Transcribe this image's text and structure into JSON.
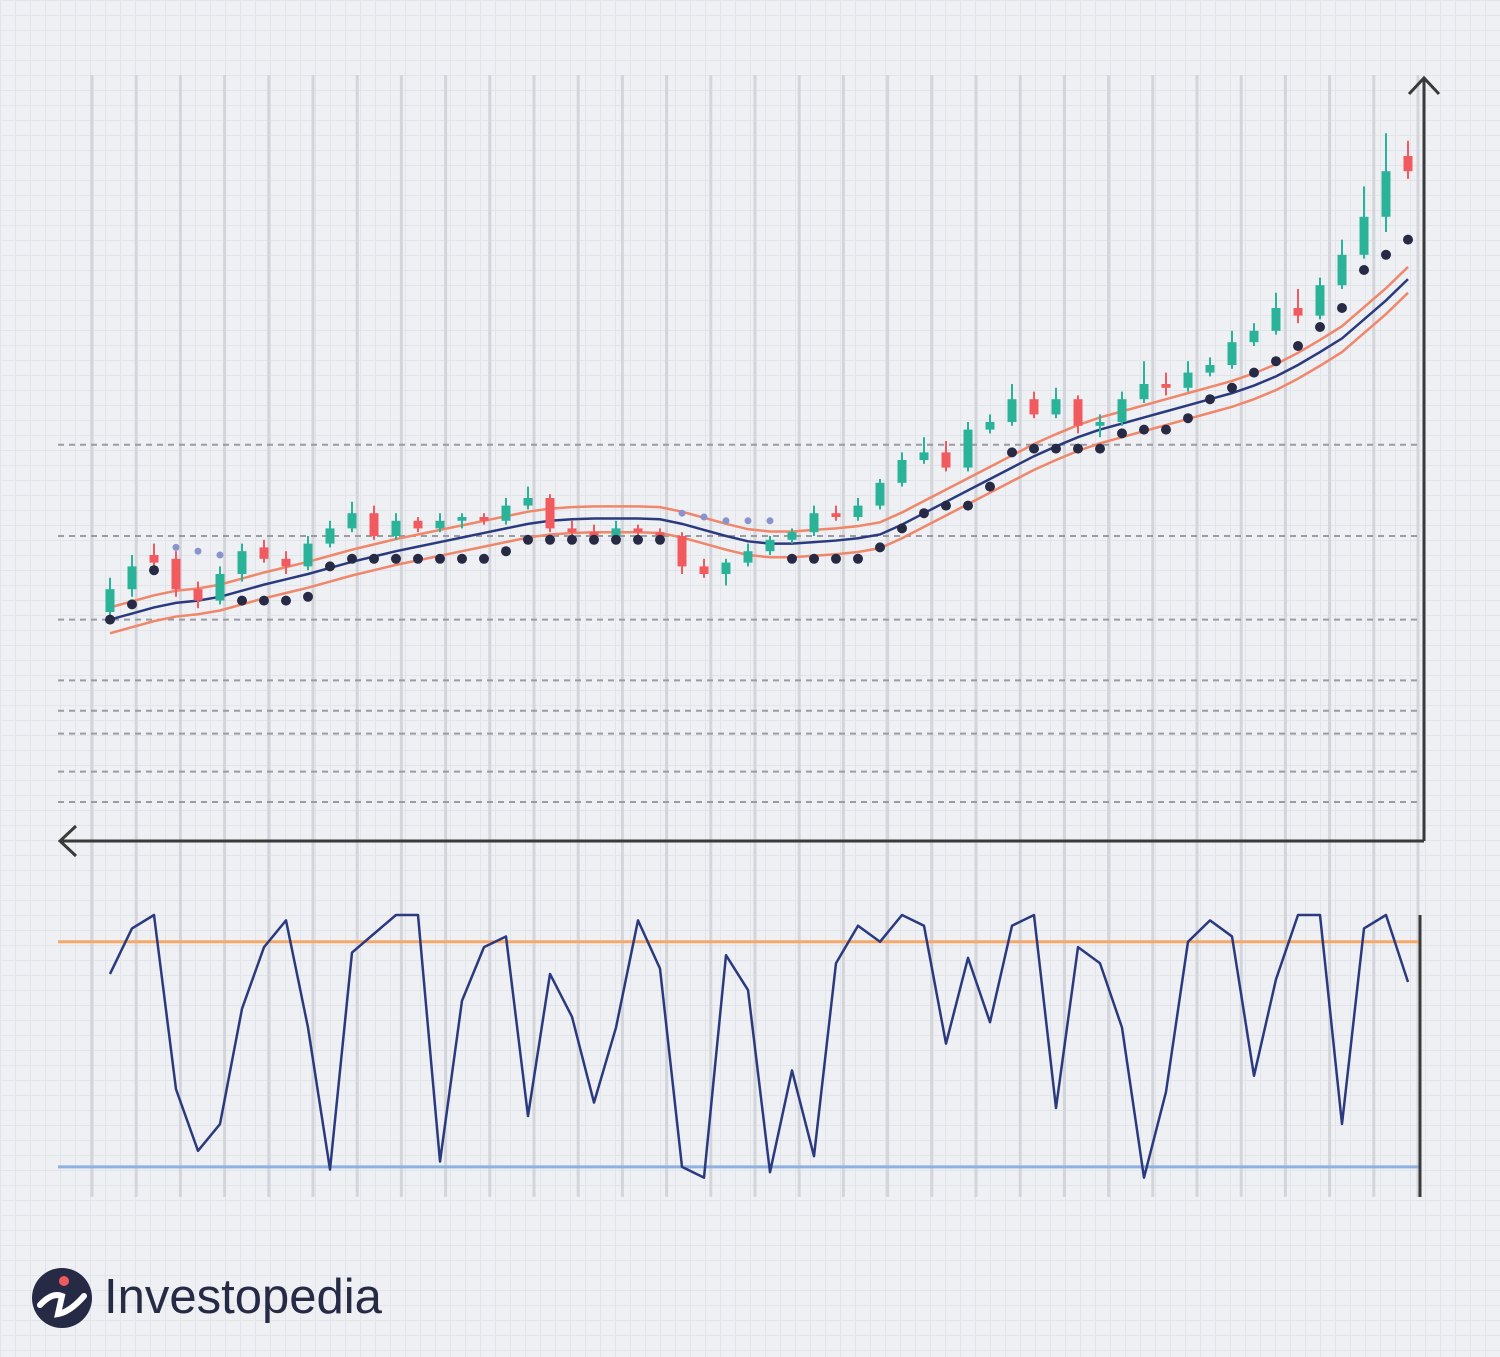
{
  "chart_data": [
    {
      "type": "candlestick",
      "ylim": [
        0,
        100
      ],
      "ygrid": [
        52,
        40,
        29,
        21,
        17,
        14,
        9,
        5
      ],
      "up_color": "#2bb39a",
      "down_color": "#f15a5e",
      "open": [
        30,
        33,
        37.5,
        37,
        33,
        31.5,
        35,
        38.5,
        37,
        36,
        39,
        41,
        43,
        40,
        42,
        41,
        42,
        42.5,
        42,
        44,
        45,
        41,
        40.5,
        40,
        41,
        40.5,
        40,
        36,
        35,
        36.5,
        38,
        39.5,
        40.5,
        43,
        42.5,
        44,
        47,
        50,
        51,
        49,
        54,
        55,
        58,
        56,
        58,
        54.5,
        55,
        58,
        60,
        59.5,
        61.5,
        62.5,
        65.5,
        67,
        70,
        69,
        73,
        77,
        82,
        90
      ],
      "high": [
        34.5,
        37.5,
        39,
        38,
        34,
        36,
        39,
        39.5,
        38,
        40,
        42,
        44.5,
        44,
        43,
        42.5,
        43,
        43,
        43,
        45,
        46.5,
        45.5,
        42,
        41.5,
        42,
        41.5,
        41,
        40.5,
        37,
        37,
        39,
        40,
        41,
        44,
        44,
        45,
        47.5,
        51,
        53,
        52.5,
        55,
        56,
        60,
        59,
        59.5,
        58.5,
        56,
        59,
        63,
        61.5,
        63,
        63.5,
        67,
        68,
        72,
        72.5,
        74,
        79,
        86,
        93,
        92
      ],
      "low": [
        29.5,
        32,
        35,
        32,
        30.5,
        31,
        34,
        36.5,
        35,
        35.5,
        38.5,
        40.5,
        39.5,
        39.5,
        40.5,
        40.5,
        41,
        41.5,
        41.5,
        43.5,
        40.5,
        40,
        39.5,
        39.5,
        40,
        39.5,
        35,
        34.5,
        33.5,
        36,
        37.5,
        39,
        40,
        42,
        42,
        43.5,
        46.5,
        49.5,
        48.5,
        48.5,
        53.5,
        54.5,
        55.5,
        55.5,
        53.5,
        53,
        54.5,
        57.5,
        58.5,
        59,
        61,
        62,
        65,
        66.5,
        68,
        68.5,
        72.5,
        76.5,
        80,
        87
      ],
      "close": [
        33,
        36,
        36.5,
        33,
        31.5,
        35,
        38,
        37,
        36,
        39,
        41,
        43,
        40,
        42,
        41,
        42,
        42.5,
        42,
        44,
        45,
        41,
        40.5,
        40,
        41,
        40.5,
        40,
        36,
        35,
        36.5,
        38,
        39.5,
        40.5,
        43,
        42.5,
        44,
        47,
        50,
        51,
        49,
        54,
        55,
        58,
        56,
        58,
        54.5,
        55,
        58,
        60,
        59.5,
        61.5,
        62.5,
        65.5,
        67,
        70,
        69,
        73,
        77,
        82,
        88,
        88
      ],
      "ma": {
        "color": "#2b3a7e",
        "values": [
          29,
          29.8,
          30.6,
          31.2,
          31.5,
          32,
          32.8,
          33.6,
          34.3,
          35,
          35.8,
          36.6,
          37.3,
          38,
          38.6,
          39.2,
          39.8,
          40.4,
          41,
          41.6,
          42,
          42.2,
          42.3,
          42.3,
          42.3,
          42.2,
          41.6,
          40.8,
          40,
          39.3,
          39,
          39,
          39.2,
          39.4,
          39.7,
          40.2,
          41.5,
          43,
          44.5,
          46,
          47.5,
          49,
          50.5,
          51.8,
          53,
          54,
          54.8,
          55.6,
          56.4,
          57.2,
          58,
          58.8,
          59.8,
          61,
          62.5,
          64.2,
          66,
          68.5,
          71,
          73.8
        ]
      },
      "upper": {
        "color": "#f0866a",
        "values": [
          30.6,
          31.4,
          32.2,
          32.8,
          33.1,
          33.6,
          34.4,
          35.2,
          35.9,
          36.6,
          37.4,
          38.2,
          38.9,
          39.6,
          40.2,
          40.8,
          41.4,
          42,
          42.6,
          43.2,
          43.6,
          43.8,
          43.9,
          43.9,
          43.9,
          43.8,
          43.2,
          42.4,
          41.6,
          40.9,
          40.6,
          40.6,
          40.8,
          41,
          41.3,
          41.8,
          43.1,
          44.6,
          46.1,
          47.6,
          49.1,
          50.6,
          52.1,
          53.4,
          54.6,
          55.6,
          56.4,
          57.2,
          58,
          58.8,
          59.6,
          60.4,
          61.4,
          62.6,
          64.1,
          65.8,
          67.6,
          70.1,
          72.6,
          75.4
        ]
      },
      "lower": {
        "color": "#f0866a",
        "values": [
          27.2,
          28,
          28.8,
          29.4,
          29.7,
          30.2,
          31,
          31.8,
          32.5,
          33.2,
          34,
          34.8,
          35.5,
          36.2,
          36.8,
          37.4,
          38,
          38.6,
          39.2,
          39.8,
          40.2,
          40.4,
          40.5,
          40.5,
          40.5,
          40.4,
          39.8,
          39,
          38.2,
          37.5,
          37.2,
          37.2,
          37.4,
          37.6,
          37.9,
          38.4,
          39.7,
          41.2,
          42.7,
          44.2,
          45.7,
          47.2,
          48.7,
          50,
          51.2,
          52.2,
          53,
          53.8,
          54.6,
          55.4,
          56.2,
          57,
          58,
          59.2,
          60.7,
          62.4,
          64.2,
          66.7,
          69.2,
          72
        ]
      },
      "sar": {
        "below_color": "#262a45",
        "above_color": "#8a93cc",
        "values": [
          29,
          31,
          35.5,
          38.5,
          38,
          37.5,
          31.5,
          31.5,
          31.5,
          32,
          36,
          37,
          37,
          37,
          37,
          37,
          37,
          37,
          38,
          39.5,
          39.5,
          39.5,
          39.5,
          39.5,
          39.5,
          39.5,
          43,
          42.5,
          42,
          42,
          42,
          37,
          37,
          37,
          37,
          38.5,
          41,
          43,
          44,
          44,
          46.5,
          51,
          51.5,
          51.5,
          51.5,
          51.5,
          53.5,
          54,
          54,
          55.5,
          58,
          59.5,
          61.5,
          63,
          65,
          67.5,
          70,
          75,
          77,
          79
        ]
      }
    },
    {
      "type": "line",
      "ylim": [
        0,
        100
      ],
      "color": "#2b3a7e",
      "values": [
        78,
        95,
        100,
        35,
        12,
        22,
        65,
        88,
        98,
        58,
        5,
        86,
        93,
        100,
        100,
        8,
        68,
        88,
        92,
        25,
        78,
        62,
        30,
        58,
        98,
        80,
        6,
        2,
        85,
        72,
        4,
        42,
        10,
        82,
        96,
        90,
        100,
        96,
        52,
        84,
        60,
        96,
        100,
        28,
        88,
        82,
        58,
        2,
        34,
        90,
        98,
        92,
        40,
        76,
        100,
        100,
        22,
        95,
        100,
        75
      ],
      "levels": [
        {
          "value": 90,
          "color": "#f5a86a"
        },
        {
          "value": 6,
          "color": "#8fb0e0"
        }
      ]
    }
  ],
  "brand": {
    "name": "Investopedia"
  }
}
